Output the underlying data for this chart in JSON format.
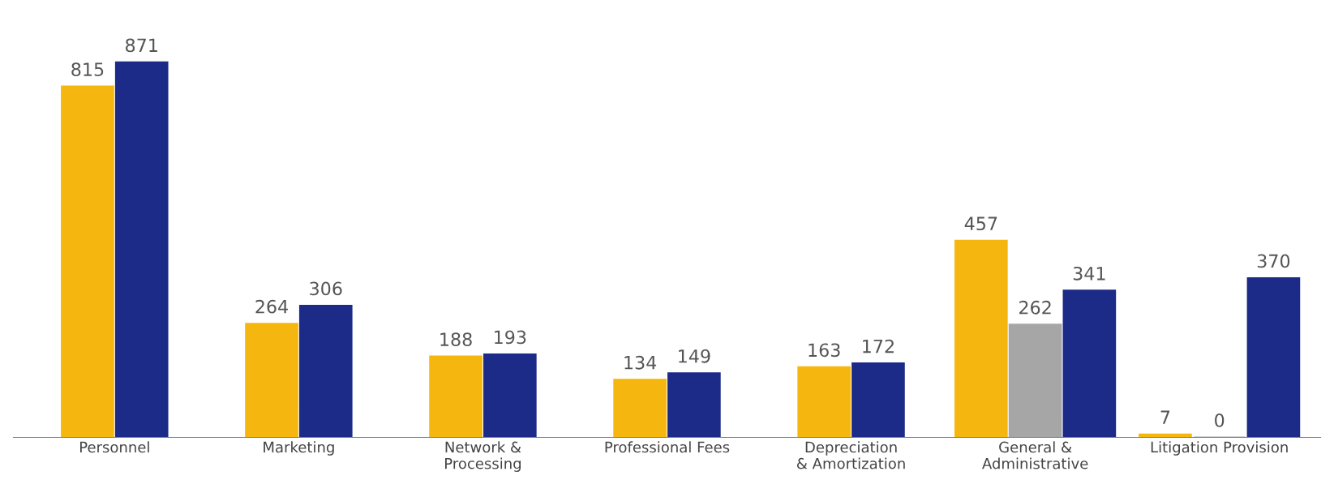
{
  "chart_data": {
    "type": "bar",
    "categories": [
      "Personnel",
      "Marketing",
      "Network & Processing",
      "Professional Fees",
      "Depreciation & Amortization",
      "General & Administrative",
      "Litigation Provision"
    ],
    "series": [
      {
        "color": "#f5b70f",
        "values": [
          815,
          264,
          188,
          134,
          163,
          457,
          7
        ]
      },
      {
        "color": "#a6a6a6",
        "values": [
          null,
          null,
          null,
          null,
          null,
          262,
          0
        ]
      },
      {
        "color": "#1c2a88",
        "values": [
          871,
          306,
          193,
          149,
          172,
          341,
          370
        ]
      }
    ],
    "data_labels": true,
    "grid": false,
    "legend": false,
    "tick_labels": "x"
  }
}
